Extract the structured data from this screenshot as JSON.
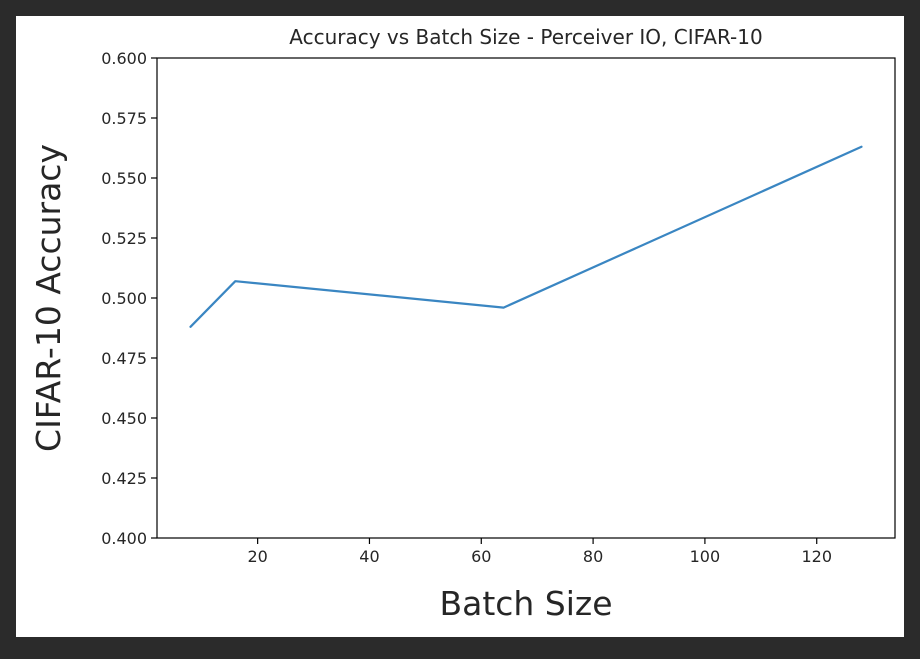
{
  "chart_data": {
    "type": "line",
    "title": "Accuracy vs Batch Size - Perceiver IO, CIFAR-10",
    "xlabel": "Batch Size",
    "ylabel": "CIFAR-10 Accuracy",
    "x": [
      8,
      16,
      64,
      128
    ],
    "series": [
      {
        "values": [
          0.488,
          0.507,
          0.496,
          0.563
        ],
        "color": "#3a86c2"
      }
    ],
    "xlim": [
      2,
      134
    ],
    "ylim": [
      0.4,
      0.6
    ],
    "xticks": [
      20,
      40,
      60,
      80,
      100,
      120
    ],
    "xtick_labels": [
      "20",
      "40",
      "60",
      "80",
      "100",
      "120"
    ],
    "yticks": [
      0.4,
      0.425,
      0.45,
      0.475,
      0.5,
      0.525,
      0.55,
      0.575,
      0.6
    ],
    "ytick_labels": [
      "0.400",
      "0.425",
      "0.450",
      "0.475",
      "0.500",
      "0.525",
      "0.550",
      "0.575",
      "0.600"
    ],
    "grid": false,
    "legend": "none"
  }
}
